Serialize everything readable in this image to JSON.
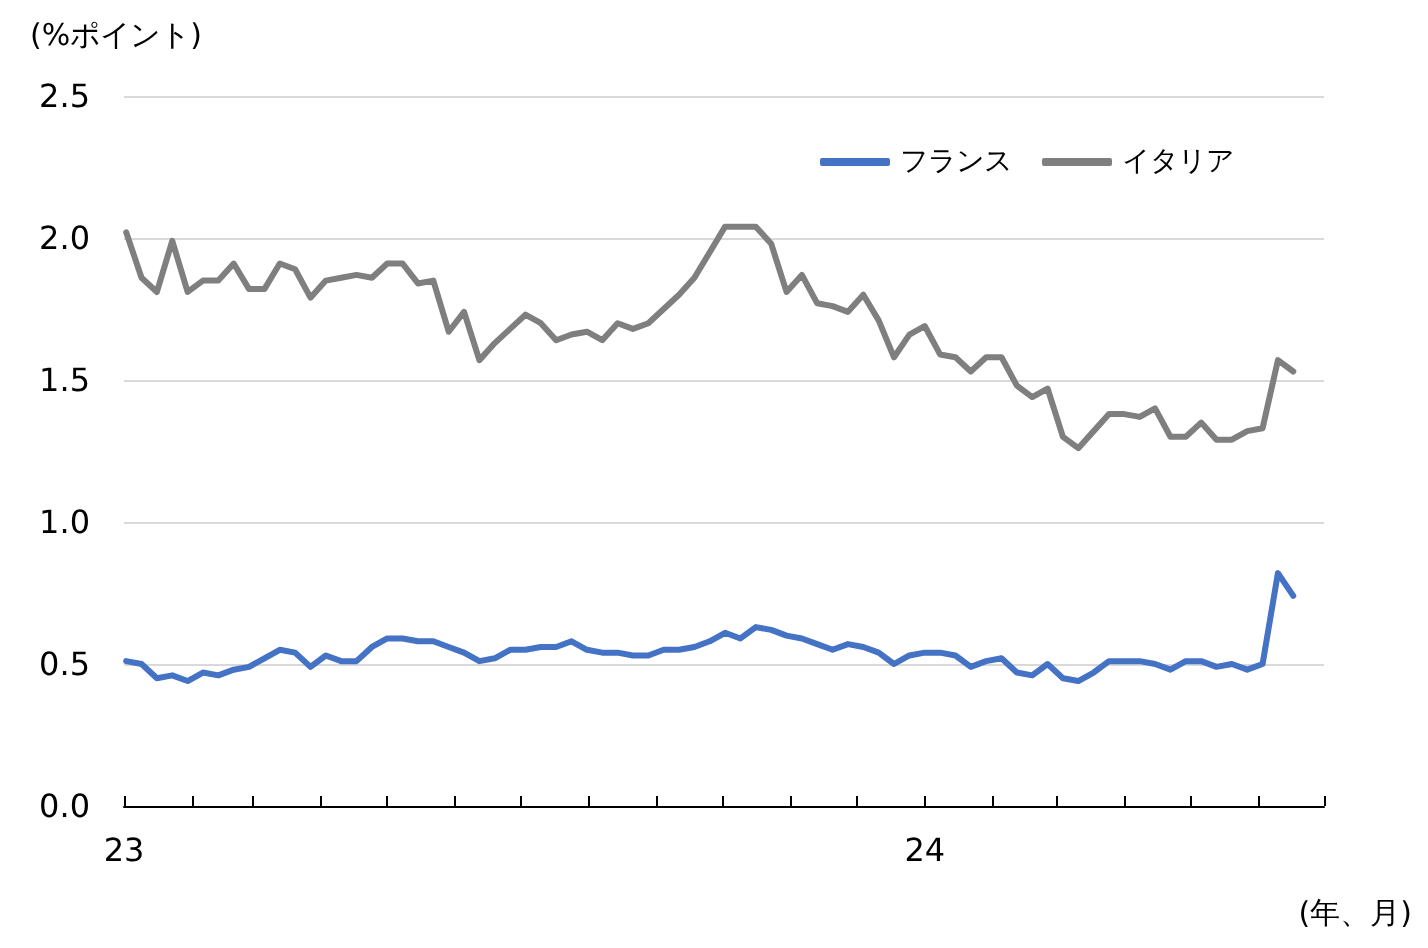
{
  "chart_data": {
    "type": "line",
    "ylabel": "(%ポイント)",
    "xlabel": "(年、月)",
    "x": [
      "2023-01-02",
      "2023-01-09",
      "2023-01-16",
      "2023-01-23",
      "2023-01-30",
      "2023-02-06",
      "2023-02-13",
      "2023-02-20",
      "2023-02-27",
      "2023-03-06",
      "2023-03-13",
      "2023-03-20",
      "2023-03-27",
      "2023-04-03",
      "2023-04-10",
      "2023-04-17",
      "2023-04-24",
      "2023-05-01",
      "2023-05-08",
      "2023-05-15",
      "2023-05-22",
      "2023-05-29",
      "2023-06-05",
      "2023-06-12",
      "2023-06-19",
      "2023-06-26",
      "2023-07-03",
      "2023-07-10",
      "2023-07-17",
      "2023-07-24",
      "2023-07-31",
      "2023-08-07",
      "2023-08-14",
      "2023-08-21",
      "2023-08-28",
      "2023-09-04",
      "2023-09-11",
      "2023-09-18",
      "2023-09-25",
      "2023-10-02",
      "2023-10-09",
      "2023-10-16",
      "2023-10-23",
      "2023-10-30",
      "2023-11-06",
      "2023-11-13",
      "2023-11-20",
      "2023-11-27",
      "2023-12-04",
      "2023-12-11",
      "2023-12-18",
      "2023-12-25",
      "2024-01-01",
      "2024-01-08",
      "2024-01-15",
      "2024-01-22",
      "2024-01-29",
      "2024-02-05",
      "2024-02-12",
      "2024-02-19",
      "2024-02-26",
      "2024-03-04",
      "2024-03-11",
      "2024-03-18",
      "2024-03-25",
      "2024-04-01",
      "2024-04-08",
      "2024-04-15",
      "2024-04-22",
      "2024-04-29",
      "2024-05-06",
      "2024-05-13",
      "2024-05-20",
      "2024-05-27",
      "2024-06-03",
      "2024-06-10",
      "2024-06-17"
    ],
    "series": [
      {
        "name": "フランス",
        "color": "#4472c4",
        "values": [
          0.51,
          0.5,
          0.45,
          0.46,
          0.44,
          0.47,
          0.46,
          0.48,
          0.49,
          0.52,
          0.55,
          0.54,
          0.49,
          0.53,
          0.51,
          0.51,
          0.56,
          0.59,
          0.59,
          0.58,
          0.58,
          0.56,
          0.54,
          0.51,
          0.52,
          0.55,
          0.55,
          0.56,
          0.56,
          0.58,
          0.55,
          0.54,
          0.54,
          0.53,
          0.53,
          0.55,
          0.55,
          0.56,
          0.58,
          0.61,
          0.59,
          0.63,
          0.62,
          0.6,
          0.59,
          0.57,
          0.55,
          0.57,
          0.56,
          0.54,
          0.5,
          0.53,
          0.54,
          0.54,
          0.53,
          0.49,
          0.51,
          0.52,
          0.47,
          0.46,
          0.5,
          0.45,
          0.44,
          0.47,
          0.51,
          0.51,
          0.51,
          0.5,
          0.48,
          0.51,
          0.51,
          0.49,
          0.5,
          0.48,
          0.5,
          0.82,
          0.74
        ]
      },
      {
        "name": "イタリア",
        "color": "#7f7f7f",
        "values": [
          2.02,
          1.86,
          1.81,
          1.99,
          1.81,
          1.85,
          1.85,
          1.91,
          1.82,
          1.82,
          1.91,
          1.89,
          1.79,
          1.85,
          1.86,
          1.87,
          1.86,
          1.91,
          1.91,
          1.84,
          1.85,
          1.67,
          1.74,
          1.57,
          1.63,
          1.68,
          1.73,
          1.7,
          1.64,
          1.66,
          1.67,
          1.64,
          1.7,
          1.68,
          1.7,
          1.75,
          1.8,
          1.86,
          1.95,
          2.04,
          2.04,
          2.04,
          1.98,
          1.81,
          1.87,
          1.77,
          1.76,
          1.74,
          1.8,
          1.71,
          1.58,
          1.66,
          1.69,
          1.59,
          1.58,
          1.53,
          1.58,
          1.58,
          1.48,
          1.44,
          1.47,
          1.3,
          1.26,
          1.32,
          1.38,
          1.38,
          1.37,
          1.4,
          1.3,
          1.3,
          1.35,
          1.29,
          1.29,
          1.32,
          1.33,
          1.57,
          1.53
        ]
      }
    ],
    "xlim": [
      "2023-01-01",
      "2024-07-01"
    ],
    "xticks": [
      {
        "value": "2023-01-01",
        "label": "23"
      },
      {
        "value": "2023-02-01",
        "label": null
      },
      {
        "value": "2023-03-01",
        "label": null
      },
      {
        "value": "2023-04-01",
        "label": null
      },
      {
        "value": "2023-05-01",
        "label": null
      },
      {
        "value": "2023-06-01",
        "label": null
      },
      {
        "value": "2023-07-01",
        "label": null
      },
      {
        "value": "2023-08-01",
        "label": null
      },
      {
        "value": "2023-09-01",
        "label": null
      },
      {
        "value": "2023-10-01",
        "label": null
      },
      {
        "value": "2023-11-01",
        "label": null
      },
      {
        "value": "2023-12-01",
        "label": null
      },
      {
        "value": "2024-01-01",
        "label": "24"
      },
      {
        "value": "2024-02-01",
        "label": null
      },
      {
        "value": "2024-03-01",
        "label": null
      },
      {
        "value": "2024-04-01",
        "label": null
      },
      {
        "value": "2024-05-01",
        "label": null
      },
      {
        "value": "2024-06-01",
        "label": null
      },
      {
        "value": "2024-07-01",
        "label": null
      }
    ],
    "ylim": [
      0,
      2.5
    ],
    "yticks": [
      {
        "value": 0,
        "label": "0.0"
      },
      0.5,
      {
        "value": 1,
        "label": "1.0"
      },
      1.5,
      {
        "value": 2,
        "label": "2.0"
      },
      2.5
    ],
    "grid": "y",
    "legend": "top right",
    "line_style": "solid"
  }
}
